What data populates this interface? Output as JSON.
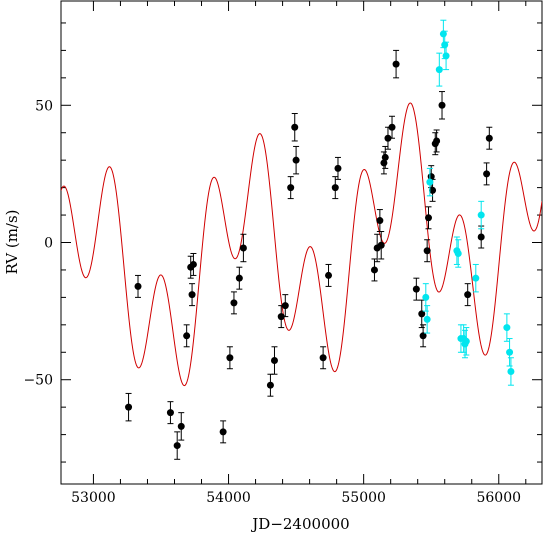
{
  "chart_data": {
    "type": "scatter",
    "title": "",
    "xlabel": "JD−2400000",
    "ylabel": "RV  (m/s)",
    "xlim": [
      52760,
      56320
    ],
    "ylim": [
      -88,
      88
    ],
    "x_ticks": [
      53000,
      54000,
      55000,
      56000
    ],
    "x_tick_labels": [
      "53000",
      "54000",
      "55000",
      "56000"
    ],
    "y_ticks": [
      -50,
      0,
      50
    ],
    "y_tick_labels": [
      "−50",
      "0",
      "50"
    ],
    "grid": false,
    "legend": "none",
    "colors": {
      "model": "#d00000",
      "series_1": "#000000",
      "series_2": "#00e5ee"
    },
    "series": [
      {
        "marker": "filled-circle",
        "color": "#000000",
        "points": [
          [
            53260,
            -60,
            5
          ],
          [
            53330,
            -16,
            4
          ],
          [
            53570,
            -62,
            4
          ],
          [
            53620,
            -74,
            5
          ],
          [
            53650,
            -67,
            5
          ],
          [
            53690,
            -34,
            4
          ],
          [
            53720,
            -9,
            4
          ],
          [
            53730,
            -19,
            4
          ],
          [
            53740,
            -8,
            4
          ],
          [
            53960,
            -69,
            4
          ],
          [
            54010,
            -42,
            4
          ],
          [
            54040,
            -22,
            4
          ],
          [
            54080,
            -13,
            4
          ],
          [
            54110,
            -2,
            5
          ],
          [
            54310,
            -52,
            4
          ],
          [
            54340,
            -43,
            5
          ],
          [
            54390,
            -27,
            4
          ],
          [
            54420,
            -23,
            4
          ],
          [
            54460,
            20,
            4
          ],
          [
            54490,
            42,
            5
          ],
          [
            54500,
            30,
            5
          ],
          [
            54700,
            -42,
            4
          ],
          [
            54740,
            -12,
            4
          ],
          [
            54790,
            20,
            4
          ],
          [
            54810,
            27,
            4
          ],
          [
            55080,
            -10,
            4
          ],
          [
            55100,
            -2,
            5
          ],
          [
            55120,
            8,
            4
          ],
          [
            55130,
            -1,
            5
          ],
          [
            55150,
            29,
            4
          ],
          [
            55160,
            31,
            4
          ],
          [
            55180,
            38,
            4
          ],
          [
            55210,
            42,
            4
          ],
          [
            55240,
            65,
            5
          ],
          [
            55390,
            -17,
            4
          ],
          [
            55430,
            -26,
            5
          ],
          [
            55440,
            -34,
            4
          ],
          [
            55470,
            -3,
            4
          ],
          [
            55480,
            9,
            4
          ],
          [
            55500,
            24,
            4
          ],
          [
            55510,
            19,
            4
          ],
          [
            55530,
            36,
            4
          ],
          [
            55540,
            37,
            4
          ],
          [
            55580,
            50,
            5
          ],
          [
            55770,
            -19,
            4
          ],
          [
            55870,
            2,
            4
          ],
          [
            55910,
            25,
            4
          ],
          [
            55930,
            38,
            4
          ]
        ]
      },
      {
        "marker": "filled-circle",
        "color": "#00e5ee",
        "points": [
          [
            55460,
            -20,
            5
          ],
          [
            55470,
            -28,
            5
          ],
          [
            55490,
            22,
            5
          ],
          [
            55560,
            63,
            6
          ],
          [
            55590,
            76,
            5
          ],
          [
            55600,
            72,
            5
          ],
          [
            55610,
            68,
            5
          ],
          [
            55690,
            -3,
            5
          ],
          [
            55700,
            -4,
            5
          ],
          [
            55720,
            -35,
            5
          ],
          [
            55740,
            -35,
            5
          ],
          [
            55750,
            -37,
            5
          ],
          [
            55760,
            -36,
            5
          ],
          [
            55830,
            -13,
            5
          ],
          [
            55870,
            10,
            5
          ],
          [
            56060,
            -31,
            5
          ],
          [
            56080,
            -40,
            5
          ],
          [
            56090,
            -47,
            5
          ]
        ]
      }
    ],
    "model_curve": {
      "color": "#d00000",
      "components": [
        {
          "offset": -3,
          "amplitude": 24,
          "period_days": 370,
          "epoch": 53040
        },
        {
          "amplitude": 26,
          "period_days": 1150,
          "epoch": 52680
        },
        {
          "slope_per_day": 0.0075,
          "epoch": 54500
        }
      ]
    }
  }
}
